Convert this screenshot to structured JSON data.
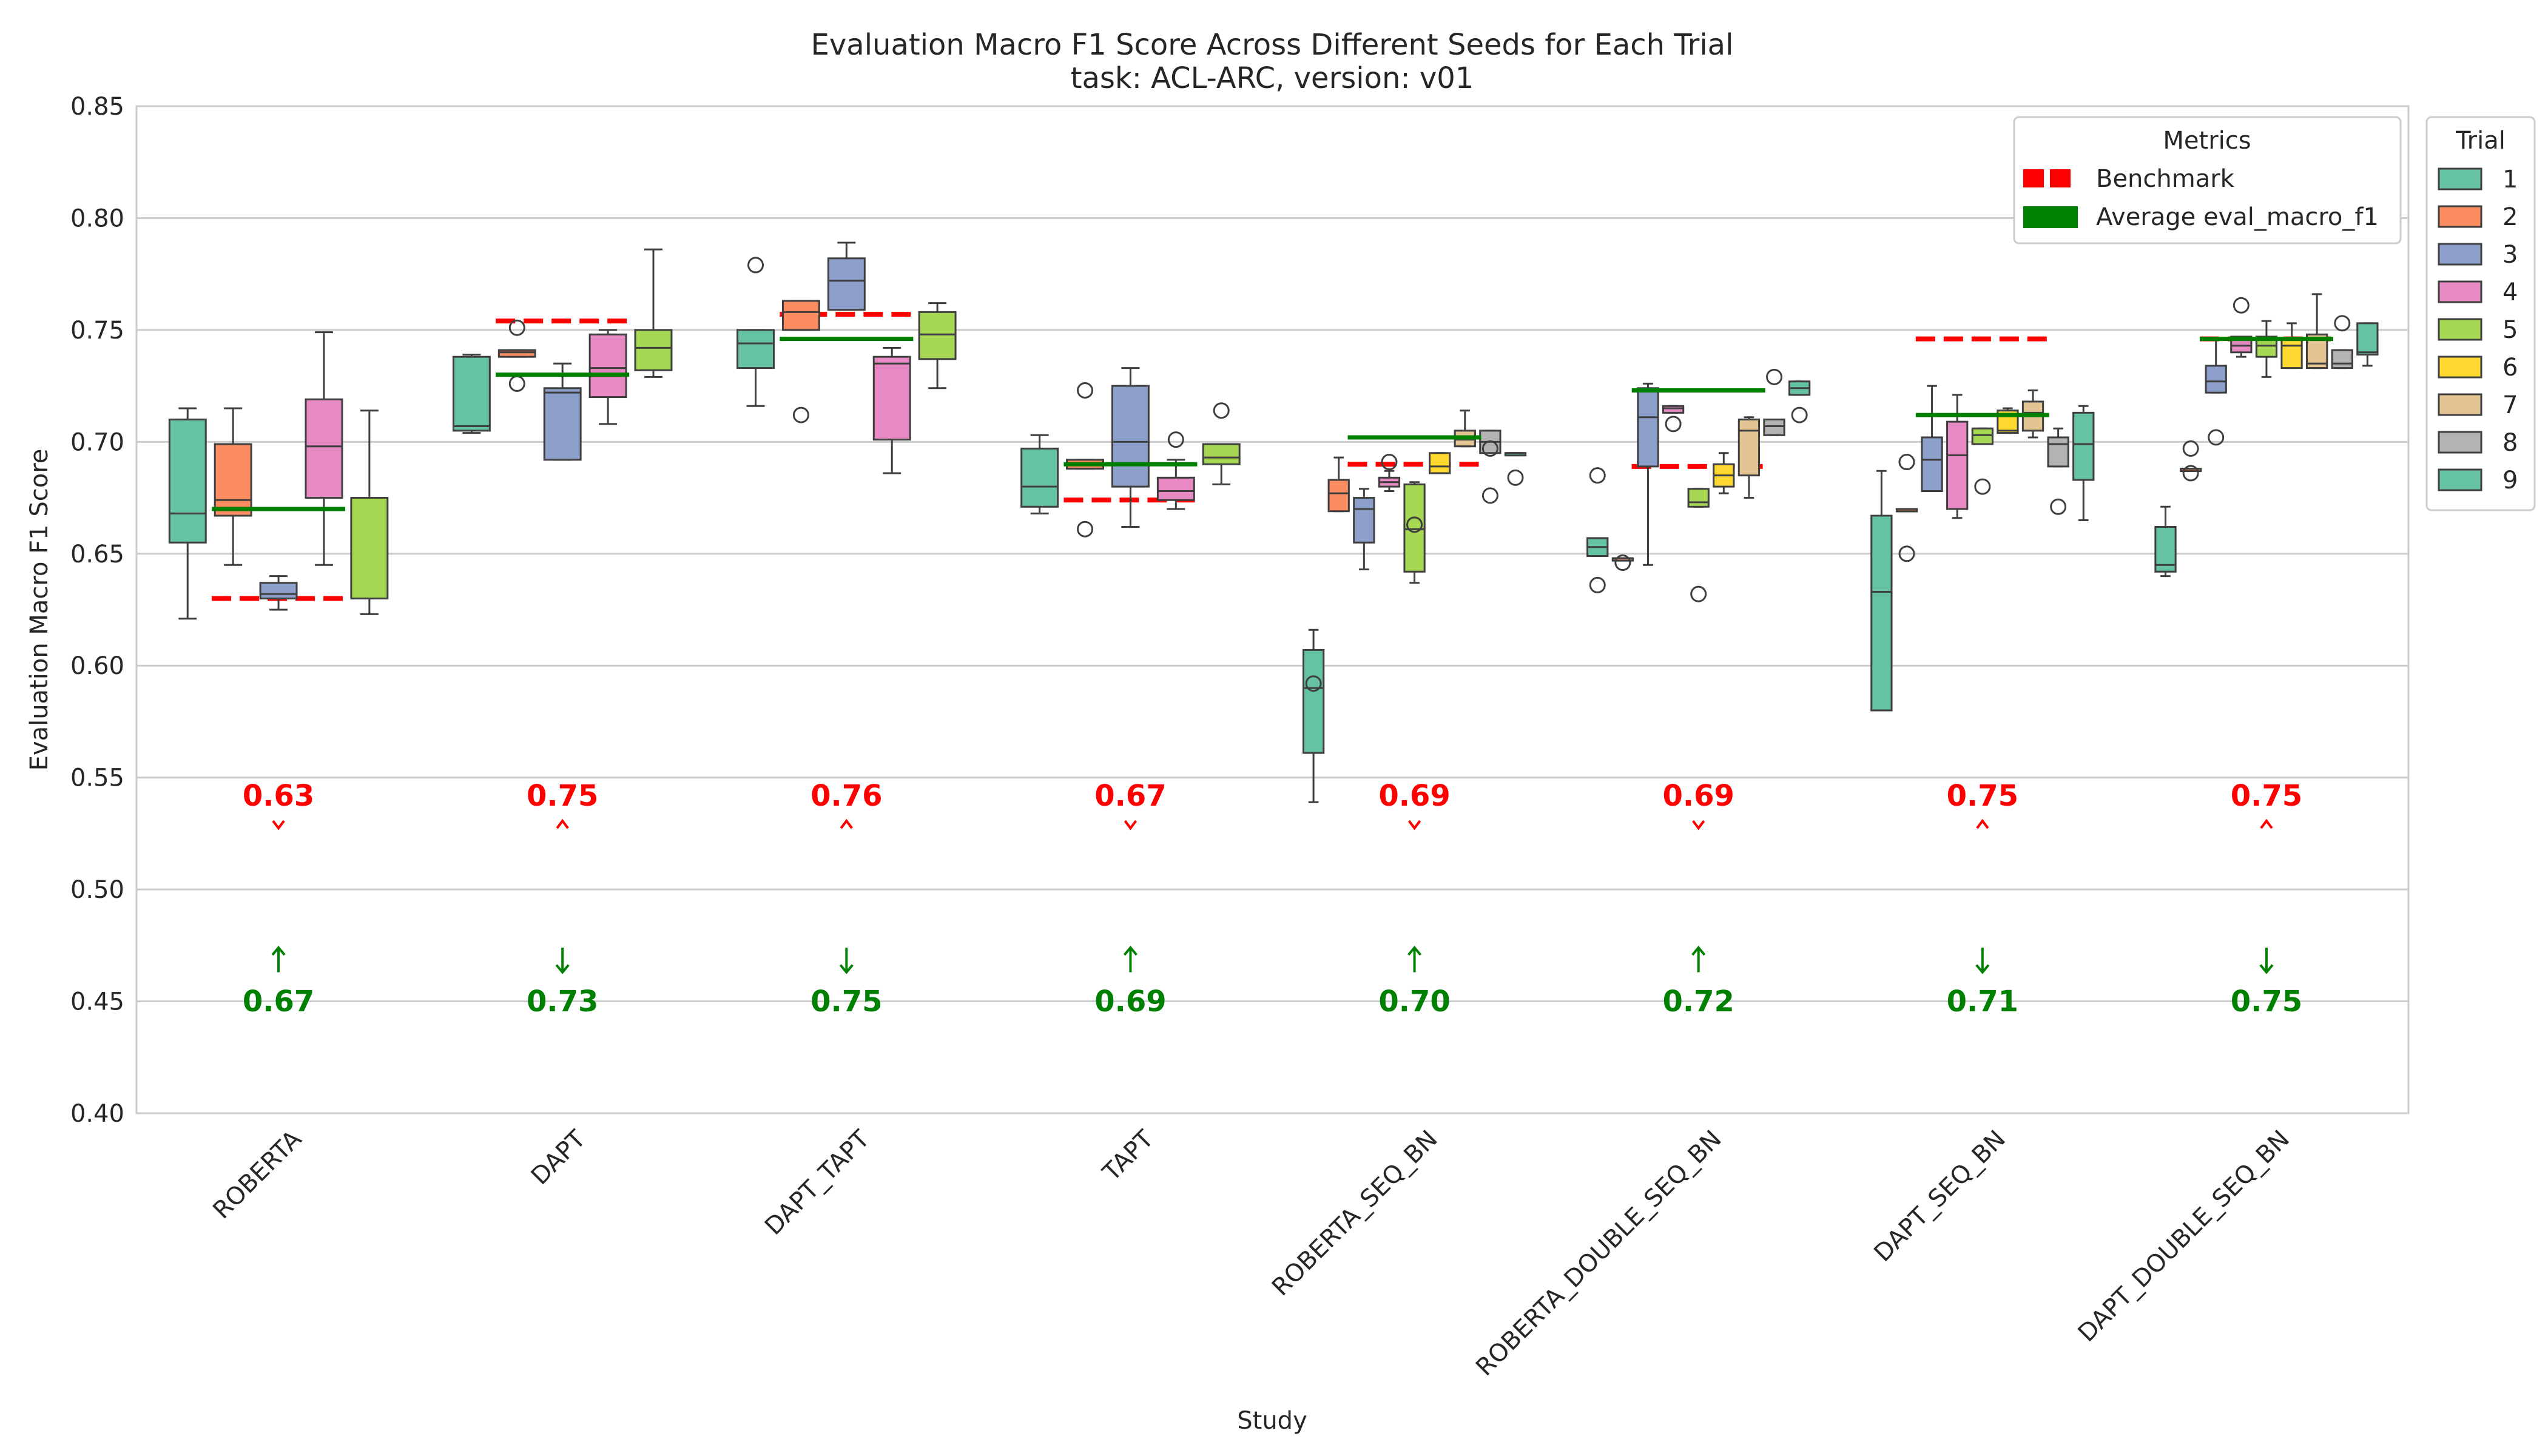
{
  "chart_data": {
    "type": "box",
    "title": "Evaluation Macro F1 Score Across Different Seeds for Each Trial",
    "subtitle": "task: ACL-ARC, version: v01",
    "xlabel": "Study",
    "ylabel": "Evaluation Macro F1 Score",
    "ylim": [
      0.4,
      0.85
    ],
    "yticks": [
      "0.40",
      "0.45",
      "0.50",
      "0.55",
      "0.60",
      "0.65",
      "0.70",
      "0.75",
      "0.80",
      "0.85"
    ],
    "grid": "horizontal",
    "categories": [
      "ROBERTA",
      "DAPT",
      "DAPT_TAPT",
      "TAPT",
      "ROBERTA_SEQ_BN",
      "ROBERTA_DOUBLE_SEQ_BN",
      "DAPT_SEQ_BN",
      "DAPT_DOUBLE_SEQ_BN"
    ],
    "metrics_legend": {
      "title": "Metrics",
      "position": "top-right",
      "items": [
        {
          "label": "Benchmark",
          "color": "#ff0000",
          "style": "dashed"
        },
        {
          "label": "Average eval_macro_f1",
          "color": "#008000",
          "style": "solid"
        }
      ]
    },
    "trial_legend": {
      "title": "Trial",
      "position": "outside-right",
      "items": [
        {
          "label": "1",
          "color": "#66c2a5"
        },
        {
          "label": "2",
          "color": "#fc8d62"
        },
        {
          "label": "3",
          "color": "#8da0cb"
        },
        {
          "label": "4",
          "color": "#e78ac3"
        },
        {
          "label": "5",
          "color": "#a6d854"
        },
        {
          "label": "6",
          "color": "#ffd92f"
        },
        {
          "label": "7",
          "color": "#e5c494"
        },
        {
          "label": "8",
          "color": "#b3b3b3"
        },
        {
          "label": "9",
          "color": "#66c2a5"
        }
      ]
    },
    "groups": [
      {
        "study": "ROBERTA",
        "benchmark": 0.63,
        "benchmark_label": "0.63",
        "average": 0.67,
        "average_label": "0.67",
        "benchmark_arrow": "down",
        "average_arrow": "up",
        "boxes": [
          {
            "trial": 1,
            "wlo": 0.621,
            "q1": 0.655,
            "med": 0.668,
            "q3": 0.71,
            "whi": 0.715,
            "outliers": []
          },
          {
            "trial": 2,
            "wlo": 0.645,
            "q1": 0.667,
            "med": 0.674,
            "q3": 0.699,
            "whi": 0.715,
            "outliers": []
          },
          {
            "trial": 3,
            "wlo": 0.625,
            "q1": 0.63,
            "med": 0.632,
            "q3": 0.637,
            "whi": 0.64,
            "outliers": []
          },
          {
            "trial": 4,
            "wlo": 0.645,
            "q1": 0.675,
            "med": 0.698,
            "q3": 0.719,
            "whi": 0.749,
            "outliers": []
          },
          {
            "trial": 5,
            "wlo": 0.623,
            "q1": 0.63,
            "med": 0.675,
            "q3": 0.675,
            "whi": 0.714,
            "outliers": []
          }
        ]
      },
      {
        "study": "DAPT",
        "benchmark": 0.754,
        "benchmark_label": "0.75",
        "average": 0.73,
        "average_label": "0.73",
        "benchmark_arrow": "up",
        "average_arrow": "down",
        "boxes": [
          {
            "trial": 1,
            "wlo": 0.704,
            "q1": 0.705,
            "med": 0.707,
            "q3": 0.738,
            "whi": 0.739,
            "outliers": []
          },
          {
            "trial": 2,
            "wlo": 0.738,
            "q1": 0.738,
            "med": 0.74,
            "q3": 0.741,
            "whi": 0.741,
            "outliers": [
              0.751,
              0.726
            ]
          },
          {
            "trial": 3,
            "wlo": 0.692,
            "q1": 0.692,
            "med": 0.722,
            "q3": 0.724,
            "whi": 0.735,
            "outliers": []
          },
          {
            "trial": 4,
            "wlo": 0.708,
            "q1": 0.72,
            "med": 0.733,
            "q3": 0.748,
            "whi": 0.75,
            "outliers": []
          },
          {
            "trial": 5,
            "wlo": 0.729,
            "q1": 0.732,
            "med": 0.742,
            "q3": 0.75,
            "whi": 0.786,
            "outliers": []
          }
        ]
      },
      {
        "study": "DAPT_TAPT",
        "benchmark": 0.757,
        "benchmark_label": "0.76",
        "average": 0.746,
        "average_label": "0.75",
        "benchmark_arrow": "up",
        "average_arrow": "down",
        "boxes": [
          {
            "trial": 1,
            "wlo": 0.716,
            "q1": 0.733,
            "med": 0.744,
            "q3": 0.75,
            "whi": 0.75,
            "outliers": [
              0.779
            ]
          },
          {
            "trial": 2,
            "wlo": 0.75,
            "q1": 0.75,
            "med": 0.758,
            "q3": 0.763,
            "whi": 0.763,
            "outliers": [
              0.712
            ]
          },
          {
            "trial": 3,
            "wlo": 0.759,
            "q1": 0.759,
            "med": 0.772,
            "q3": 0.782,
            "whi": 0.789,
            "outliers": []
          },
          {
            "trial": 4,
            "wlo": 0.686,
            "q1": 0.701,
            "med": 0.735,
            "q3": 0.738,
            "whi": 0.742,
            "outliers": []
          },
          {
            "trial": 5,
            "wlo": 0.724,
            "q1": 0.737,
            "med": 0.748,
            "q3": 0.758,
            "whi": 0.762,
            "outliers": []
          }
        ]
      },
      {
        "study": "TAPT",
        "benchmark": 0.674,
        "benchmark_label": "0.67",
        "average": 0.69,
        "average_label": "0.69",
        "benchmark_arrow": "down",
        "average_arrow": "up",
        "boxes": [
          {
            "trial": 1,
            "wlo": 0.668,
            "q1": 0.671,
            "med": 0.68,
            "q3": 0.697,
            "whi": 0.703,
            "outliers": []
          },
          {
            "trial": 2,
            "wlo": 0.688,
            "q1": 0.688,
            "med": 0.69,
            "q3": 0.692,
            "whi": 0.692,
            "outliers": [
              0.723,
              0.661
            ]
          },
          {
            "trial": 3,
            "wlo": 0.662,
            "q1": 0.68,
            "med": 0.7,
            "q3": 0.725,
            "whi": 0.733,
            "outliers": []
          },
          {
            "trial": 4,
            "wlo": 0.67,
            "q1": 0.674,
            "med": 0.678,
            "q3": 0.684,
            "whi": 0.692,
            "outliers": [
              0.701
            ]
          },
          {
            "trial": 5,
            "wlo": 0.681,
            "q1": 0.69,
            "med": 0.693,
            "q3": 0.699,
            "whi": 0.699,
            "outliers": [
              0.714
            ]
          }
        ]
      },
      {
        "study": "ROBERTA_SEQ_BN",
        "benchmark": 0.69,
        "benchmark_label": "0.69",
        "average": 0.702,
        "average_label": "0.70",
        "benchmark_arrow": "down",
        "average_arrow": "up",
        "boxes": [
          {
            "trial": 1,
            "wlo": 0.539,
            "q1": 0.561,
            "med": 0.59,
            "q3": 0.607,
            "whi": 0.616,
            "outliers": [
              0.592
            ]
          },
          {
            "trial": 2,
            "wlo": 0.669,
            "q1": 0.669,
            "med": 0.677,
            "q3": 0.683,
            "whi": 0.693,
            "outliers": []
          },
          {
            "trial": 3,
            "wlo": 0.643,
            "q1": 0.655,
            "med": 0.67,
            "q3": 0.675,
            "whi": 0.679,
            "outliers": []
          },
          {
            "trial": 4,
            "wlo": 0.678,
            "q1": 0.68,
            "med": 0.682,
            "q3": 0.684,
            "whi": 0.687,
            "outliers": [
              0.691
            ]
          },
          {
            "trial": 5,
            "wlo": 0.637,
            "q1": 0.642,
            "med": 0.661,
            "q3": 0.681,
            "whi": 0.682,
            "outliers": [
              0.663
            ]
          },
          {
            "trial": 6,
            "wlo": 0.686,
            "q1": 0.686,
            "med": 0.689,
            "q3": 0.695,
            "whi": 0.695,
            "outliers": []
          },
          {
            "trial": 7,
            "wlo": 0.698,
            "q1": 0.698,
            "med": 0.701,
            "q3": 0.705,
            "whi": 0.714,
            "outliers": []
          },
          {
            "trial": 8,
            "wlo": 0.695,
            "q1": 0.695,
            "med": 0.7,
            "q3": 0.705,
            "whi": 0.705,
            "outliers": [
              0.676,
              0.697
            ]
          },
          {
            "trial": 9,
            "wlo": 0.695,
            "q1": 0.695,
            "med": 0.695,
            "q3": 0.695,
            "whi": 0.695,
            "outliers": [
              0.684
            ]
          }
        ]
      },
      {
        "study": "ROBERTA_DOUBLE_SEQ_BN",
        "benchmark": 0.689,
        "benchmark_label": "0.69",
        "average": 0.723,
        "average_label": "0.72",
        "benchmark_arrow": "down",
        "average_arrow": "up",
        "boxes": [
          {
            "trial": 1,
            "wlo": 0.649,
            "q1": 0.649,
            "med": 0.653,
            "q3": 0.657,
            "whi": 0.657,
            "outliers": [
              0.685,
              0.636
            ]
          },
          {
            "trial": 2,
            "wlo": 0.648,
            "q1": 0.648,
            "med": 0.648,
            "q3": 0.648,
            "whi": 0.648,
            "outliers": [
              0.646
            ]
          },
          {
            "trial": 3,
            "wlo": 0.645,
            "q1": 0.689,
            "med": 0.711,
            "q3": 0.724,
            "whi": 0.726,
            "outliers": []
          },
          {
            "trial": 4,
            "wlo": 0.713,
            "q1": 0.713,
            "med": 0.715,
            "q3": 0.716,
            "whi": 0.716,
            "outliers": [
              0.708
            ]
          },
          {
            "trial": 5,
            "wlo": 0.671,
            "q1": 0.671,
            "med": 0.673,
            "q3": 0.679,
            "whi": 0.679,
            "outliers": [
              0.632
            ]
          },
          {
            "trial": 6,
            "wlo": 0.677,
            "q1": 0.68,
            "med": 0.685,
            "q3": 0.69,
            "whi": 0.695,
            "outliers": []
          },
          {
            "trial": 7,
            "wlo": 0.675,
            "q1": 0.685,
            "med": 0.705,
            "q3": 0.71,
            "whi": 0.711,
            "outliers": []
          },
          {
            "trial": 8,
            "wlo": 0.703,
            "q1": 0.703,
            "med": 0.707,
            "q3": 0.71,
            "whi": 0.71,
            "outliers": [
              0.729
            ]
          },
          {
            "trial": 9,
            "wlo": 0.721,
            "q1": 0.721,
            "med": 0.724,
            "q3": 0.727,
            "whi": 0.727,
            "outliers": [
              0.712
            ]
          }
        ]
      },
      {
        "study": "DAPT_SEQ_BN",
        "benchmark": 0.746,
        "benchmark_label": "0.75",
        "average": 0.712,
        "average_label": "0.71",
        "benchmark_arrow": "up",
        "average_arrow": "down",
        "boxes": [
          {
            "trial": 1,
            "wlo": 0.58,
            "q1": 0.58,
            "med": 0.633,
            "q3": 0.667,
            "whi": 0.687,
            "outliers": []
          },
          {
            "trial": 2,
            "wlo": 0.669,
            "q1": 0.669,
            "med": 0.669,
            "q3": 0.67,
            "whi": 0.67,
            "outliers": [
              0.691,
              0.65
            ]
          },
          {
            "trial": 3,
            "wlo": 0.678,
            "q1": 0.678,
            "med": 0.692,
            "q3": 0.702,
            "whi": 0.725,
            "outliers": []
          },
          {
            "trial": 4,
            "wlo": 0.666,
            "q1": 0.67,
            "med": 0.694,
            "q3": 0.709,
            "whi": 0.721,
            "outliers": []
          },
          {
            "trial": 5,
            "wlo": 0.699,
            "q1": 0.699,
            "med": 0.703,
            "q3": 0.706,
            "whi": 0.706,
            "outliers": [
              0.68
            ]
          },
          {
            "trial": 6,
            "wlo": 0.704,
            "q1": 0.704,
            "med": 0.705,
            "q3": 0.714,
            "whi": 0.715,
            "outliers": []
          },
          {
            "trial": 7,
            "wlo": 0.702,
            "q1": 0.705,
            "med": 0.713,
            "q3": 0.718,
            "whi": 0.723,
            "outliers": []
          },
          {
            "trial": 8,
            "wlo": 0.689,
            "q1": 0.689,
            "med": 0.699,
            "q3": 0.702,
            "whi": 0.706,
            "outliers": [
              0.671
            ]
          },
          {
            "trial": 9,
            "wlo": 0.665,
            "q1": 0.683,
            "med": 0.699,
            "q3": 0.713,
            "whi": 0.716,
            "outliers": []
          }
        ]
      },
      {
        "study": "DAPT_DOUBLE_SEQ_BN",
        "benchmark": 0.746,
        "benchmark_label": "0.75",
        "average": 0.746,
        "average_label": "0.75",
        "benchmark_arrow": "up",
        "average_arrow": "down",
        "boxes": [
          {
            "trial": 1,
            "wlo": 0.64,
            "q1": 0.642,
            "med": 0.645,
            "q3": 0.662,
            "whi": 0.671,
            "outliers": []
          },
          {
            "trial": 2,
            "wlo": 0.688,
            "q1": 0.688,
            "med": 0.688,
            "q3": 0.688,
            "whi": 0.688,
            "outliers": [
              0.697,
              0.686
            ]
          },
          {
            "trial": 3,
            "wlo": 0.722,
            "q1": 0.722,
            "med": 0.727,
            "q3": 0.734,
            "whi": 0.746,
            "outliers": [
              0.702
            ]
          },
          {
            "trial": 4,
            "wlo": 0.738,
            "q1": 0.74,
            "med": 0.743,
            "q3": 0.747,
            "whi": 0.747,
            "outliers": [
              0.761
            ]
          },
          {
            "trial": 5,
            "wlo": 0.729,
            "q1": 0.738,
            "med": 0.743,
            "q3": 0.747,
            "whi": 0.754,
            "outliers": []
          },
          {
            "trial": 6,
            "wlo": 0.733,
            "q1": 0.733,
            "med": 0.743,
            "q3": 0.746,
            "whi": 0.753,
            "outliers": []
          },
          {
            "trial": 7,
            "wlo": 0.733,
            "q1": 0.733,
            "med": 0.735,
            "q3": 0.748,
            "whi": 0.766,
            "outliers": []
          },
          {
            "trial": 8,
            "wlo": 0.733,
            "q1": 0.733,
            "med": 0.735,
            "q3": 0.741,
            "whi": 0.741,
            "outliers": [
              0.753
            ]
          },
          {
            "trial": 9,
            "wlo": 0.734,
            "q1": 0.739,
            "med": 0.74,
            "q3": 0.753,
            "whi": 0.753,
            "outliers": []
          }
        ]
      }
    ]
  }
}
